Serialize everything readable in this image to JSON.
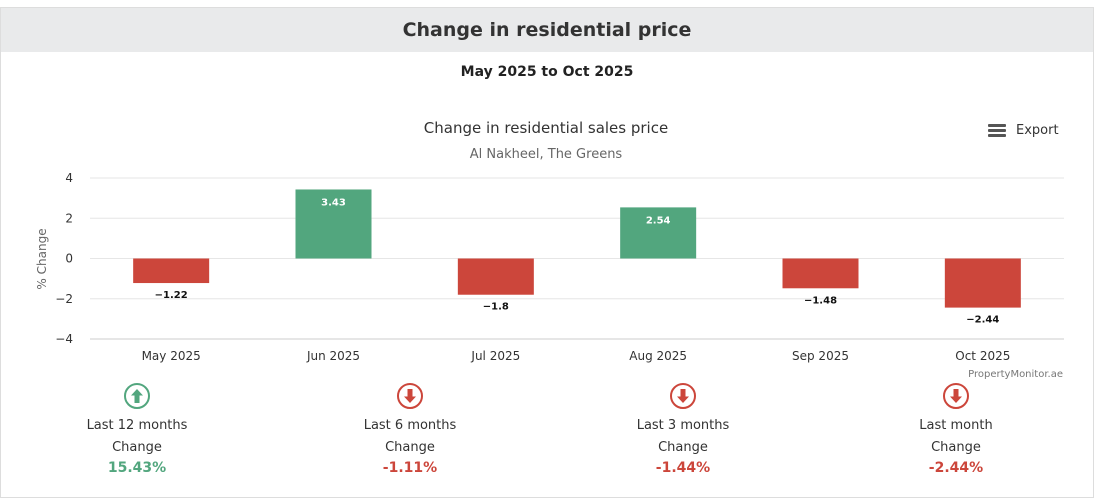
{
  "panel": {
    "title": "Change in residential price",
    "subtitle": "May 2025 to Oct 2025"
  },
  "export": {
    "label": "Export",
    "icon": "menu-icon"
  },
  "chart_data": {
    "type": "bar",
    "title": "Change in residential sales price",
    "subtitle": "Al Nakheel, The Greens",
    "categories": [
      "May 2025",
      "Jun 2025",
      "Jul 2025",
      "Aug 2025",
      "Sep 2025",
      "Oct 2025"
    ],
    "values": [
      -1.22,
      3.43,
      -1.8,
      2.54,
      -1.48,
      -2.44
    ],
    "value_labels": [
      "−1.22",
      "3.43",
      "−1.8",
      "2.54",
      "−1.48",
      "−2.44"
    ],
    "xlabel": "",
    "ylabel": "% Change",
    "ylim": [
      -4,
      4
    ],
    "yticks": [
      4,
      2,
      0,
      -2,
      -4
    ],
    "ytick_labels": [
      "4",
      "2",
      "0",
      "−2",
      "−4"
    ],
    "positive_color": "#52a67e",
    "negative_color": "#cc463b",
    "grid": true,
    "credit": "PropertyMonitor.ae"
  },
  "stats": [
    {
      "period": "Last 12 months",
      "label": "Change",
      "value": "15.43%",
      "direction": "up",
      "icon": "arrow-up-circle-icon",
      "color": "#52a67e"
    },
    {
      "period": "Last 6 months",
      "label": "Change",
      "value": "-1.11%",
      "direction": "down",
      "icon": "arrow-down-circle-icon",
      "color": "#cc463b"
    },
    {
      "period": "Last 3 months",
      "label": "Change",
      "value": "-1.44%",
      "direction": "down",
      "icon": "arrow-down-circle-icon",
      "color": "#cc463b"
    },
    {
      "period": "Last month",
      "label": "Change",
      "value": "-2.44%",
      "direction": "down",
      "icon": "arrow-down-circle-icon",
      "color": "#cc463b"
    }
  ]
}
